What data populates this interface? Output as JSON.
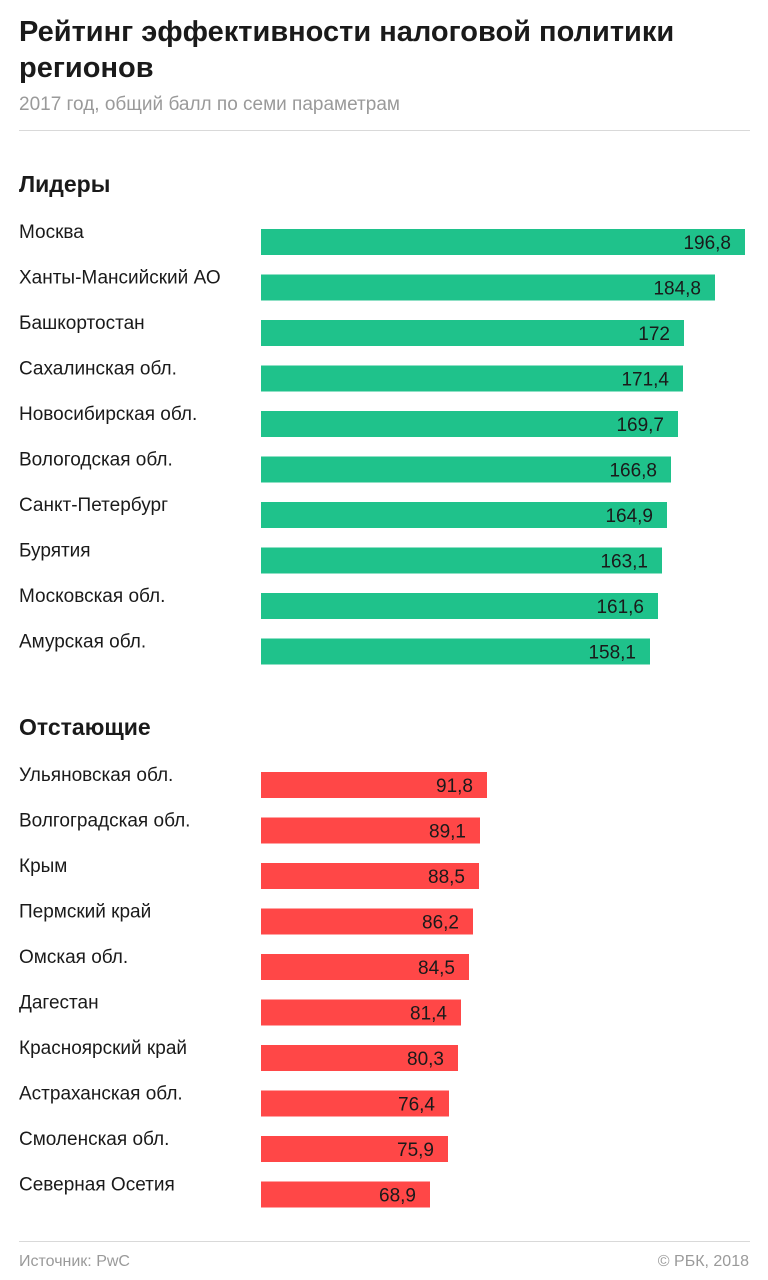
{
  "header": {
    "title": "Рейтинг эффективности налоговой политики регионов",
    "subtitle": "2017 год, общий балл по семи параметрам"
  },
  "footer": {
    "source": "Источник: PwC",
    "copyright": "© РБК, 2018"
  },
  "chart_data": [
    {
      "type": "bar",
      "orientation": "horizontal",
      "title": "Лидеры",
      "color": "#1fc28b",
      "categories": [
        "Москва",
        "Ханты-Мансийский АО",
        "Башкортостан",
        "Сахалинская обл.",
        "Новосибирская обл.",
        "Вологодская обл.",
        "Санкт-Петербург",
        "Бурятия",
        "Московская обл.",
        "Амурская обл."
      ],
      "values": [
        196.8,
        184.8,
        172,
        171.4,
        169.7,
        166.8,
        164.9,
        163.1,
        161.6,
        158.1
      ],
      "value_labels": [
        "196,8",
        "184,8",
        "172",
        "171,4",
        "169,7",
        "166,8",
        "164,9",
        "163,1",
        "161,6",
        "158,1"
      ],
      "xlim": [
        0,
        196.8
      ],
      "grid": false,
      "legend": "none"
    },
    {
      "type": "bar",
      "orientation": "horizontal",
      "title": "Отстающие",
      "color": "#ff4747",
      "categories": [
        "Ульяновская обл.",
        "Волгоградская обл.",
        "Крым",
        "Пермский край",
        "Омская обл.",
        "Дагестан",
        "Красноярский край",
        "Астраханская обл.",
        "Смоленская обл.",
        "Северная Осетия"
      ],
      "values": [
        91.8,
        89.1,
        88.5,
        86.2,
        84.5,
        81.4,
        80.3,
        76.4,
        75.9,
        68.9
      ],
      "value_labels": [
        "91,8",
        "89,1",
        "88,5",
        "86,2",
        "84,5",
        "81,4",
        "80,3",
        "76,4",
        "75,9",
        "68,9"
      ],
      "xlim": [
        0,
        196.8
      ],
      "grid": false,
      "legend": "none"
    }
  ]
}
